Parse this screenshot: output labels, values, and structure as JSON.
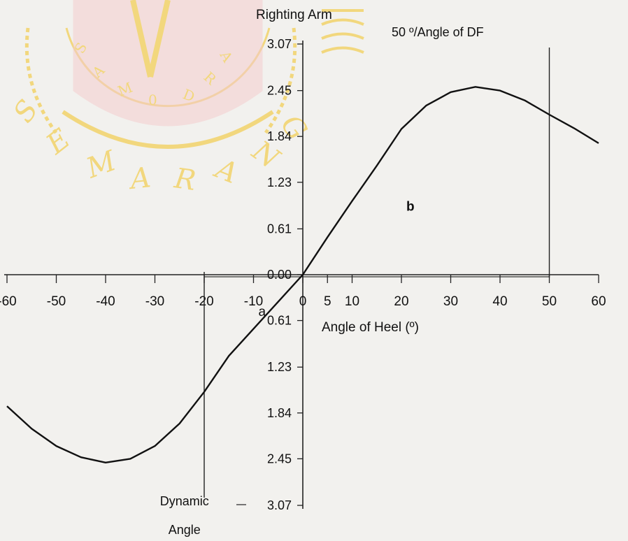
{
  "watermark": {
    "text": "SEMARANG",
    "inner_text": "SAMODRA",
    "inner_digit": "0",
    "color": "#f2d36a",
    "accent_color": "#f5c6c6",
    "icon": "university-seal-icon"
  },
  "chart_data": {
    "type": "line",
    "title": "50 º/Angle of DF",
    "ylabel": "Righting Arm",
    "xlabel": "Angle of Heel (º)",
    "xlim": [
      -60,
      60
    ],
    "ylim": [
      -3.07,
      3.07
    ],
    "x_ticks": [
      -60,
      -50,
      -40,
      -30,
      -20,
      -10,
      0,
      5,
      10,
      20,
      30,
      40,
      50,
      60
    ],
    "x_tick_labels": [
      "-60",
      "-50",
      "-40",
      "-30",
      "-20",
      "-10",
      "0",
      "5",
      "10",
      "20",
      "30",
      "40",
      "50",
      "60"
    ],
    "y_ticks": [
      3.07,
      2.45,
      1.84,
      1.23,
      0.61,
      0.0,
      -0.61,
      -1.23,
      -1.84,
      -2.45,
      -3.07
    ],
    "y_tick_labels": [
      "3.07",
      "2.45",
      "1.84",
      "1.23",
      "0.61",
      "0.00",
      "0.61",
      "1.23",
      "1.84",
      "2.45",
      "3.07"
    ],
    "series": [
      {
        "x": [
          -60,
          -55,
          -50,
          -45,
          -40,
          -35,
          -30,
          -25,
          -20,
          -15,
          -10,
          -5,
          0,
          5,
          10,
          15,
          20,
          25,
          30,
          35,
          40,
          45,
          50,
          55,
          60
        ],
        "y": [
          -1.75,
          -2.05,
          -2.28,
          -2.43,
          -2.5,
          -2.45,
          -2.28,
          -1.98,
          -1.56,
          -1.08,
          -0.72,
          -0.36,
          0.0,
          0.5,
          0.98,
          1.45,
          1.94,
          2.25,
          2.43,
          2.5,
          2.45,
          2.32,
          2.13,
          1.95,
          1.75
        ]
      }
    ],
    "reference_lines": [
      {
        "axis": "x",
        "value": 50
      },
      {
        "axis": "x",
        "value": -20
      }
    ],
    "annotations": [
      {
        "text": "b",
        "x": 21,
        "y": 0.85
      },
      {
        "text": "a",
        "x": -9,
        "y": -0.55
      },
      {
        "text": "Dynamic",
        "x": -24,
        "y": -3.07
      },
      {
        "text": "Angle",
        "x": -24,
        "y": -3.45
      }
    ],
    "grid": false,
    "legend": "none"
  }
}
